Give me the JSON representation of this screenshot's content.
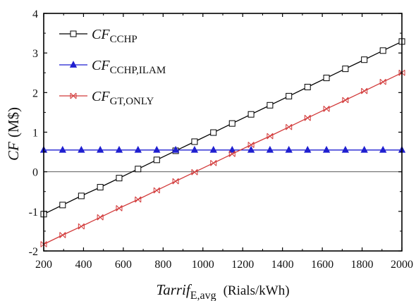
{
  "chart_data": {
    "type": "line",
    "xlabel": {
      "main": "Tarrif",
      "sub": "E,avg",
      "unit": "(Rials/kWh)"
    },
    "ylabel": {
      "main": "CF",
      "unit": "(M$)"
    },
    "xlim": [
      200,
      2000
    ],
    "ylim": [
      -2,
      4
    ],
    "xticks": [
      200,
      400,
      600,
      800,
      1000,
      1200,
      1400,
      1600,
      1800,
      2000
    ],
    "yticks": [
      -2,
      -1,
      0,
      1,
      2,
      3,
      4
    ],
    "zero_line": true,
    "grid": false,
    "legend_position": "top-left",
    "x": [
      200,
      295,
      389,
      484,
      579,
      674,
      768,
      863,
      958,
      1053,
      1147,
      1242,
      1337,
      1432,
      1526,
      1621,
      1716,
      1811,
      1905,
      2000
    ],
    "series": [
      {
        "name": "CCHP",
        "label_main": "CF",
        "label_sub": "CCHP",
        "color": "#000000",
        "marker": "square",
        "values": [
          -1.07,
          -0.84,
          -0.61,
          -0.39,
          -0.16,
          0.07,
          0.3,
          0.53,
          0.76,
          0.99,
          1.22,
          1.45,
          1.68,
          1.91,
          2.14,
          2.37,
          2.6,
          2.83,
          3.06,
          3.29
        ]
      },
      {
        "name": "CCHP,ILAM",
        "label_main": "CF",
        "label_sub": "CCHP,ILAM",
        "color": "#1f1fd0",
        "marker": "triangle",
        "values": [
          0.55,
          0.55,
          0.55,
          0.55,
          0.55,
          0.55,
          0.55,
          0.55,
          0.55,
          0.55,
          0.55,
          0.55,
          0.55,
          0.55,
          0.55,
          0.55,
          0.55,
          0.55,
          0.55,
          0.55
        ]
      },
      {
        "name": "GT,ONLY",
        "label_main": "CF",
        "label_sub": "GT,ONLY",
        "color": "#d23a3a",
        "marker": "x-tri",
        "values": [
          -1.83,
          -1.6,
          -1.38,
          -1.15,
          -0.92,
          -0.7,
          -0.47,
          -0.24,
          -0.01,
          0.22,
          0.45,
          0.68,
          0.9,
          1.13,
          1.36,
          1.59,
          1.81,
          2.04,
          2.27,
          2.5
        ]
      }
    ]
  }
}
